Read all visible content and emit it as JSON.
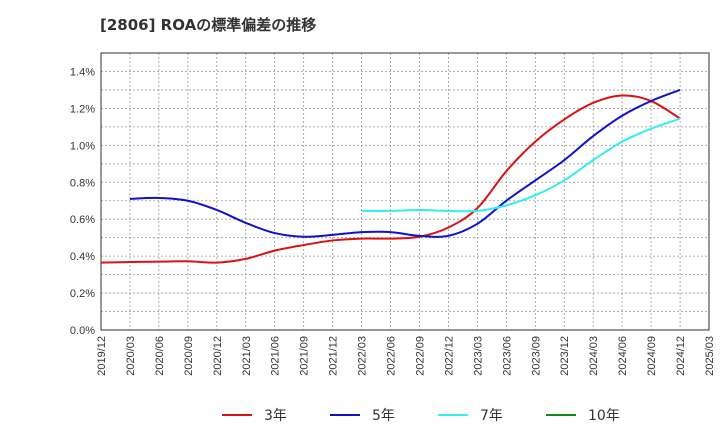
{
  "chart_data": {
    "type": "line",
    "title": "[2806]  ROAの標準偏差の推移",
    "xlabel": "",
    "ylabel": "",
    "ylim": [
      0,
      1.5
    ],
    "yticks": [
      0,
      0.2,
      0.4,
      0.6,
      0.8,
      1.0,
      1.2,
      1.4
    ],
    "ytick_labels": [
      "0.0%",
      "0.2%",
      "0.4%",
      "0.6%",
      "0.8%",
      "1.0%",
      "1.2%",
      "1.4%"
    ],
    "categories": [
      "2019/12",
      "2020/03",
      "2020/06",
      "2020/09",
      "2020/12",
      "2021/03",
      "2021/06",
      "2021/09",
      "2021/12",
      "2022/03",
      "2022/06",
      "2022/09",
      "2022/12",
      "2023/03",
      "2023/06",
      "2023/09",
      "2023/12",
      "2024/03",
      "2024/06",
      "2024/09",
      "2024/12",
      "2025/03"
    ],
    "grid": true,
    "legend": "bottom",
    "series": [
      {
        "name": "3年",
        "color": "#dd1111",
        "values": [
          0.365,
          0.368,
          0.37,
          0.372,
          0.365,
          0.385,
          0.43,
          0.46,
          0.485,
          0.495,
          0.495,
          0.505,
          0.555,
          0.66,
          0.86,
          1.02,
          1.14,
          1.23,
          1.27,
          1.24,
          1.145,
          null
        ]
      },
      {
        "name": "5年",
        "color": "#1111cc",
        "values": [
          null,
          0.71,
          0.715,
          0.7,
          0.65,
          0.58,
          0.525,
          0.505,
          0.515,
          0.53,
          0.53,
          0.51,
          0.51,
          0.575,
          0.7,
          0.81,
          0.92,
          1.05,
          1.16,
          1.24,
          1.3,
          null
        ]
      },
      {
        "name": "7年",
        "color": "#33eeee",
        "values": [
          null,
          null,
          null,
          null,
          null,
          null,
          null,
          null,
          null,
          0.645,
          0.645,
          0.65,
          0.645,
          0.645,
          0.675,
          0.73,
          0.81,
          0.92,
          1.02,
          1.09,
          1.145,
          null
        ]
      },
      {
        "name": "10年",
        "color": "#118811",
        "values": [
          null,
          null,
          null,
          null,
          null,
          null,
          null,
          null,
          null,
          null,
          null,
          null,
          null,
          null,
          null,
          null,
          null,
          null,
          null,
          null,
          null,
          null
        ]
      }
    ]
  }
}
